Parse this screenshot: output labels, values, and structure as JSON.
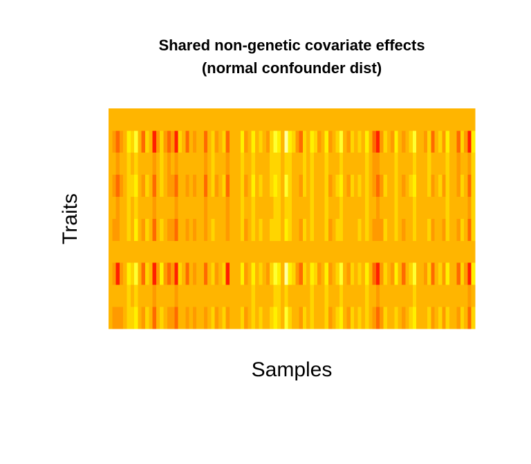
{
  "chart_data": {
    "type": "heatmap",
    "title_lines": [
      "Shared non-genetic covariate effects",
      "(normal confounder dist)"
    ],
    "xlabel": "Samples",
    "ylabel": "Traits",
    "n_samples": 100,
    "n_traits": 10,
    "colormap": "heat",
    "palette": [
      "#FF2000",
      "#FF6A00",
      "#FF9A00",
      "#FFB500",
      "#FFD500",
      "#FFF000",
      "#FFFF30",
      "#FFFFA0"
    ],
    "sample_values": [
      0.5,
      0.34,
      0.2,
      0.38,
      0.52,
      0.72,
      0.58,
      0.86,
      0.44,
      0.3,
      0.62,
      0.48,
      0.1,
      0.4,
      0.66,
      0.42,
      0.28,
      0.34,
      0.05,
      0.56,
      0.46,
      0.3,
      0.5,
      0.36,
      0.54,
      0.48,
      0.22,
      0.46,
      0.64,
      0.38,
      0.5,
      0.58,
      0.2,
      0.44,
      0.52,
      0.5,
      0.7,
      0.36,
      0.54,
      0.76,
      0.46,
      0.6,
      0.52,
      0.4,
      0.64,
      0.82,
      0.72,
      0.5,
      0.98,
      0.68,
      0.56,
      0.4,
      0.3,
      0.64,
      0.48,
      0.74,
      0.56,
      0.42,
      0.5,
      0.72,
      0.36,
      0.52,
      0.62,
      0.8,
      0.46,
      0.38,
      0.58,
      0.5,
      0.6,
      0.44,
      0.74,
      0.54,
      0.26,
      0.18,
      0.36,
      0.62,
      0.5,
      0.42,
      0.7,
      0.48,
      0.32,
      0.5,
      0.58,
      0.78,
      0.44,
      0.52,
      0.4,
      0.64,
      0.3,
      0.48,
      0.58,
      0.36,
      0.7,
      0.5,
      0.44,
      0.26,
      0.6,
      0.4,
      0.06,
      0.68
    ],
    "trait_loadings": [
      0.55,
      0.2,
      0.95,
      0.0,
      0.45,
      0.25,
      0.6,
      0.3,
      0.9,
      -1.0
    ],
    "constant_trait_value": 0.45
  }
}
